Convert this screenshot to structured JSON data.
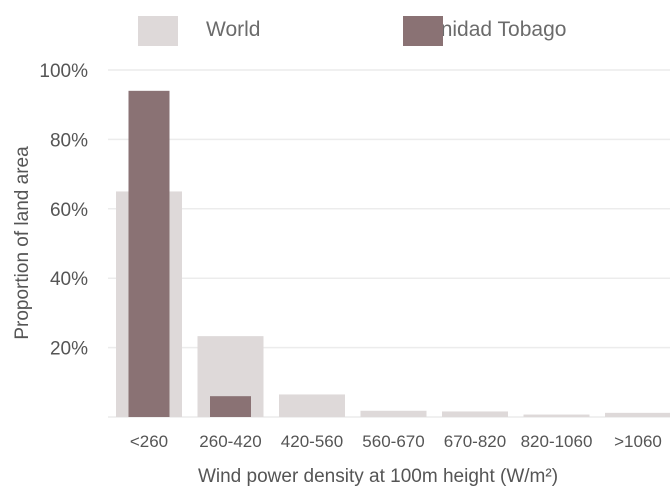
{
  "colors": {
    "world": "#ded9d9",
    "trinidad": "#8a7274",
    "grid": "#ececec",
    "text": "#555555"
  },
  "chart_data": {
    "type": "bar",
    "categories": [
      "<260",
      "260-420",
      "420-560",
      "560-670",
      "670-820",
      "820-1060",
      ">1060"
    ],
    "series": [
      {
        "name": "World",
        "values": [
          65,
          23.3,
          6.5,
          1.8,
          1.6,
          0.7,
          1.2
        ]
      },
      {
        "name": "Trinidad Tobago",
        "values": [
          94,
          6,
          0,
          0,
          0,
          0,
          0
        ]
      }
    ],
    "xlabel": "Wind power density at 100m height (W/m²)",
    "ylabel": "Proportion of land area",
    "ylim": [
      0,
      100
    ],
    "yticks": [
      20,
      40,
      60,
      80,
      100
    ],
    "ytick_labels": [
      "20%",
      "40%",
      "60%",
      "80%",
      "100%"
    ],
    "grid": true,
    "legend_position": "top"
  }
}
